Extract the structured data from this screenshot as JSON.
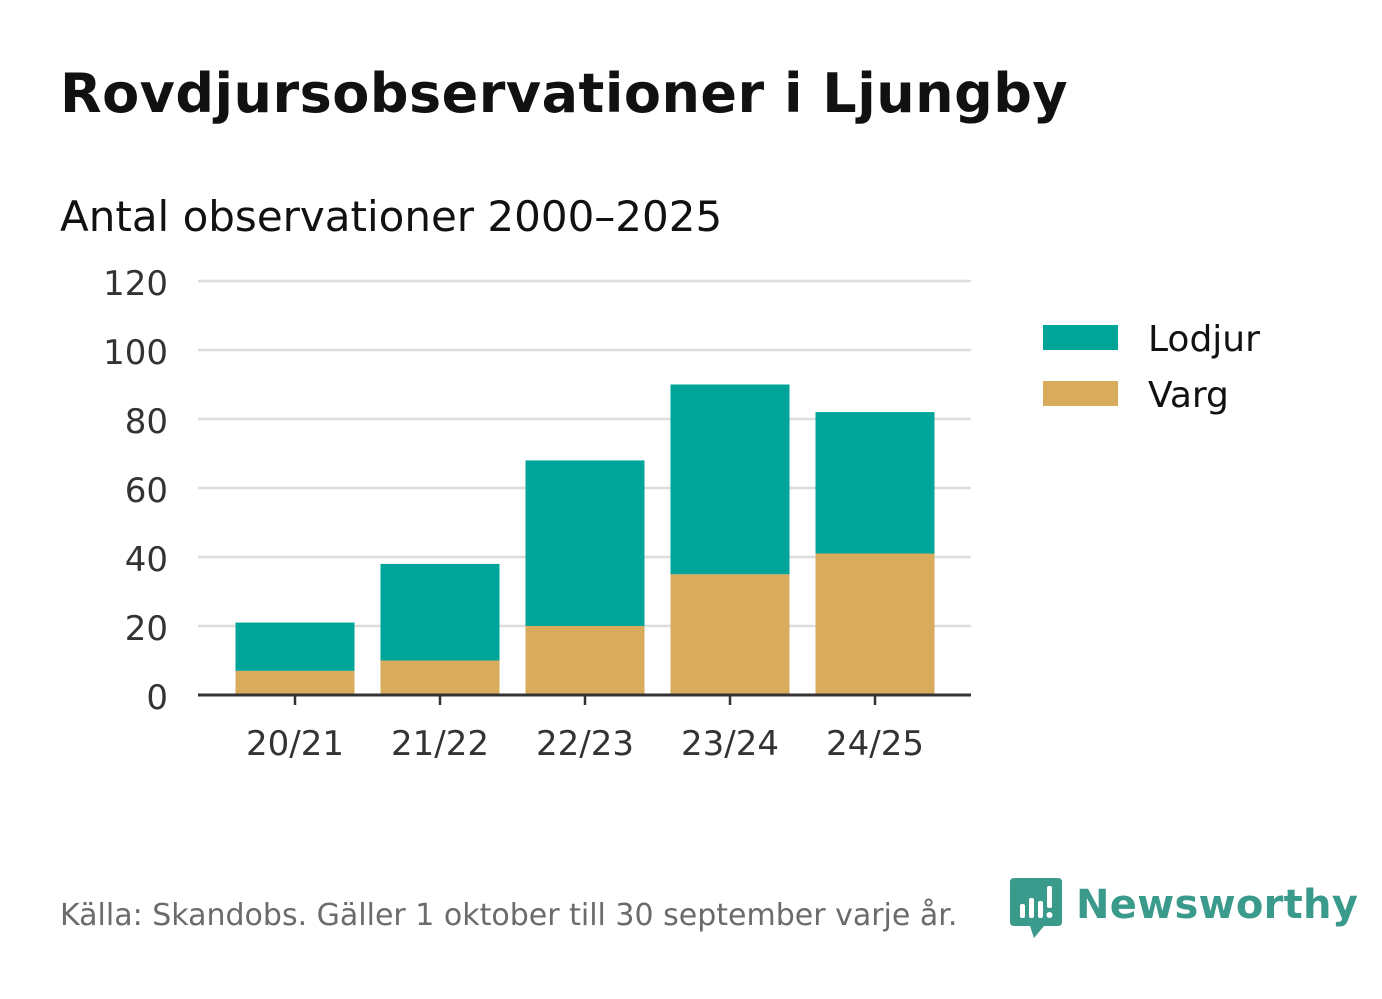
{
  "header": {
    "title": "Rovdjursobservationer i Ljungby",
    "subtitle": "Antal observationer 2000–2025"
  },
  "footer": {
    "source": "Källa: Skandobs. Gäller 1 oktober till 30 september varje år."
  },
  "brand": {
    "name": "Newsworthy",
    "logo_icon": "newsworthy-logo-icon",
    "color": "#3a9a8c"
  },
  "colors": {
    "lodjur": "#00a59a",
    "varg": "#d9ab5c",
    "grid": "#dddddd",
    "axis": "#333333"
  },
  "chart_data": {
    "type": "bar",
    "stacked": true,
    "categories": [
      "20/21",
      "21/22",
      "22/23",
      "23/24",
      "24/25"
    ],
    "series": [
      {
        "name": "Varg",
        "values": [
          7,
          10,
          20,
          35,
          41
        ]
      },
      {
        "name": "Lodjur",
        "values": [
          14,
          28,
          48,
          55,
          41
        ]
      }
    ],
    "legend_order": [
      "Lodjur",
      "Varg"
    ],
    "legend_position": "right",
    "ylim": [
      0,
      120
    ],
    "yticks": [
      0,
      20,
      40,
      60,
      80,
      100,
      120
    ],
    "grid": true,
    "xlabel": "",
    "ylabel": ""
  }
}
